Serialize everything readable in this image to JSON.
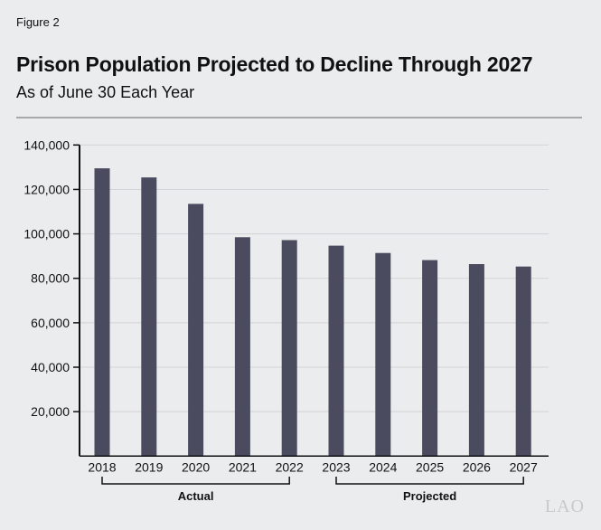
{
  "figure_label": "Figure 2",
  "logo_text": "LAO",
  "chart_data": {
    "type": "bar",
    "title": "Prison Population Projected to Decline Through 2027",
    "subtitle": "As of June 30 Each Year",
    "categories": [
      "2018",
      "2019",
      "2020",
      "2021",
      "2022",
      "2023",
      "2024",
      "2025",
      "2026",
      "2027"
    ],
    "values": [
      129500,
      125400,
      113500,
      98500,
      97200,
      94700,
      91400,
      88200,
      86400,
      85300
    ],
    "ylim": [
      0,
      140000
    ],
    "yticks": [
      20000,
      40000,
      60000,
      80000,
      100000,
      120000,
      140000
    ],
    "ytick_labels": [
      "20,000",
      "40,000",
      "60,000",
      "80,000",
      "100,000",
      "120,000",
      "140,000"
    ],
    "grid": true,
    "bar_color": "#4a4b5e",
    "groups": [
      {
        "label": "Actual",
        "from": "2018",
        "to": "2022"
      },
      {
        "label": "Projected",
        "from": "2023",
        "to": "2027"
      }
    ]
  }
}
